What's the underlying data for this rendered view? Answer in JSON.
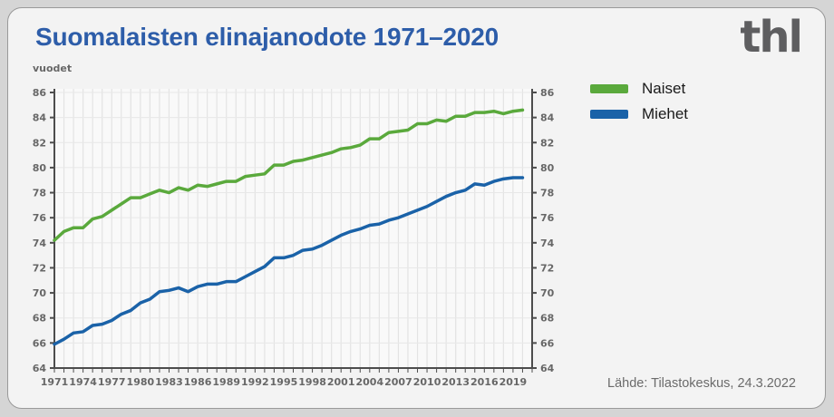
{
  "card": {
    "title": "Suomalaisten elinajanodote 1971–2020",
    "logo_text": "thl",
    "y_axis_unit": "vuodet",
    "source_note": "Lähde: Tilastokeskus, 24.3.2022"
  },
  "colors": {
    "page_background": "#d5d5d5",
    "card_background": "#f3f3f3",
    "plot_background": "#f9f9f9",
    "title_blue": "#2d5da9",
    "logo_grey": "#5e5e60",
    "axis": "#4d4d4d",
    "grid_vertical": "#e3e3e3",
    "grid_horizontal": "#e8e8e8",
    "tick_label": "#676767",
    "naiset_green": "#5aa93c",
    "miehet_blue": "#1a62a8"
  },
  "chart_data": {
    "type": "line",
    "title": "Suomalaisten elinajanodote 1971–2020",
    "y_axis_label": "vuodet",
    "ylim": [
      64,
      86
    ],
    "y_tick_step": 2,
    "x_axis_range": [
      1971,
      2021
    ],
    "x_labeled_ticks": [
      1971,
      1974,
      1977,
      1980,
      1983,
      1986,
      1989,
      1992,
      1995,
      1998,
      2001,
      2004,
      2007,
      2010,
      2013,
      2016,
      2019
    ],
    "grid": true,
    "legend_position": "top-right",
    "years": [
      1971,
      1972,
      1973,
      1974,
      1975,
      1976,
      1977,
      1978,
      1979,
      1980,
      1981,
      1982,
      1983,
      1984,
      1985,
      1986,
      1987,
      1988,
      1989,
      1990,
      1991,
      1992,
      1993,
      1994,
      1995,
      1996,
      1997,
      1998,
      1999,
      2000,
      2001,
      2002,
      2003,
      2004,
      2005,
      2006,
      2007,
      2008,
      2009,
      2010,
      2011,
      2012,
      2013,
      2014,
      2015,
      2016,
      2017,
      2018,
      2019,
      2020
    ],
    "series": [
      {
        "name": "Naiset",
        "color": "#5aa93c",
        "values": [
          74.2,
          74.9,
          75.2,
          75.2,
          75.9,
          76.1,
          76.6,
          77.1,
          77.6,
          77.6,
          77.9,
          78.2,
          78.0,
          78.4,
          78.2,
          78.6,
          78.5,
          78.7,
          78.9,
          78.9,
          79.3,
          79.4,
          79.5,
          80.2,
          80.2,
          80.5,
          80.6,
          80.8,
          81.0,
          81.2,
          81.5,
          81.6,
          81.8,
          82.3,
          82.3,
          82.8,
          82.9,
          83.0,
          83.5,
          83.5,
          83.8,
          83.7,
          84.1,
          84.1,
          84.4,
          84.4,
          84.5,
          84.3,
          84.5,
          84.6
        ]
      },
      {
        "name": "Miehet",
        "color": "#1a62a8",
        "values": [
          65.9,
          66.3,
          66.8,
          66.9,
          67.4,
          67.5,
          67.8,
          68.3,
          68.6,
          69.2,
          69.5,
          70.1,
          70.2,
          70.4,
          70.1,
          70.5,
          70.7,
          70.7,
          70.9,
          70.9,
          71.3,
          71.7,
          72.1,
          72.8,
          72.8,
          73.0,
          73.4,
          73.5,
          73.8,
          74.2,
          74.6,
          74.9,
          75.1,
          75.4,
          75.5,
          75.8,
          76.0,
          76.3,
          76.6,
          76.9,
          77.3,
          77.7,
          78.0,
          78.2,
          78.7,
          78.6,
          78.9,
          79.1,
          79.2,
          79.2
        ]
      }
    ]
  }
}
